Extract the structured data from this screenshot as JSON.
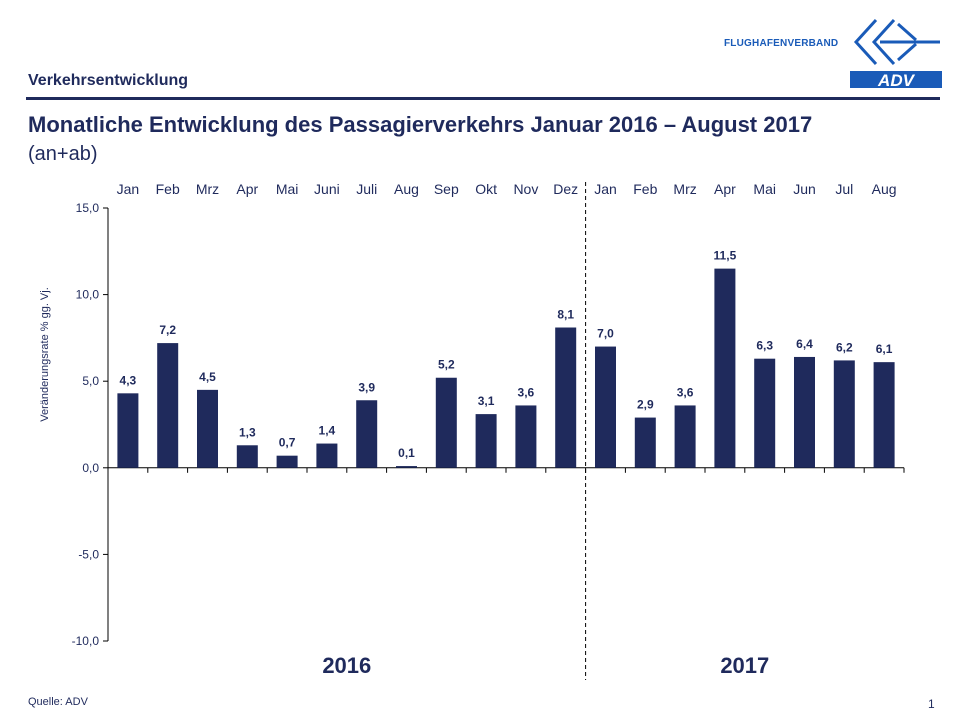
{
  "header": {
    "section_label": "Verkehrsentwicklung",
    "title": "Monatliche Entwicklung des Passagierverkehrs  Januar 2016 – August 2017",
    "subtitle": "(an+ab)",
    "logo_text": "FLUGHAFENVERBAND",
    "logo_wordmark": "ADV"
  },
  "footer": {
    "source": "Quelle: ADV",
    "page_number": "1"
  },
  "colors": {
    "bar": "#1f2a5c",
    "text": "#1f2a5c",
    "logo_blue": "#1a5bb8"
  },
  "chart_data": {
    "type": "bar",
    "ylabel": "Veränderungsrate % gg. Vj.",
    "ylim": [
      -10,
      15
    ],
    "yticks": [
      15,
      10,
      5,
      0,
      -5,
      -10
    ],
    "ytick_labels": [
      "15,0",
      "10,0",
      "5,0",
      "0,0",
      "-5,0",
      "-10,0"
    ],
    "categories": [
      "Jan",
      "Feb",
      "Mrz",
      "Apr",
      "Mai",
      "Juni",
      "Juli",
      "Aug",
      "Sep",
      "Okt",
      "Nov",
      "Dez",
      "Jan",
      "Feb",
      "Mrz",
      "Apr",
      "Mai",
      "Jun",
      "Jul",
      "Aug"
    ],
    "values": [
      4.3,
      7.2,
      4.5,
      1.3,
      0.7,
      1.4,
      3.9,
      0.1,
      5.2,
      3.1,
      3.6,
      8.1,
      7.0,
      2.9,
      3.6,
      11.5,
      6.3,
      6.4,
      6.2,
      6.1
    ],
    "value_labels": [
      "4,3",
      "7,2",
      "4,5",
      "1,3",
      "0,7",
      "1,4",
      "3,9",
      "0,1",
      "5,2",
      "3,1",
      "3,6",
      "8,1",
      "7,0",
      "2,9",
      "3,6",
      "11,5",
      "6,3",
      "6,4",
      "6,2",
      "6,1"
    ],
    "groups": [
      {
        "label": "2016",
        "count": 12
      },
      {
        "label": "2017",
        "count": 8
      }
    ],
    "legend": "none",
    "grid": false
  }
}
